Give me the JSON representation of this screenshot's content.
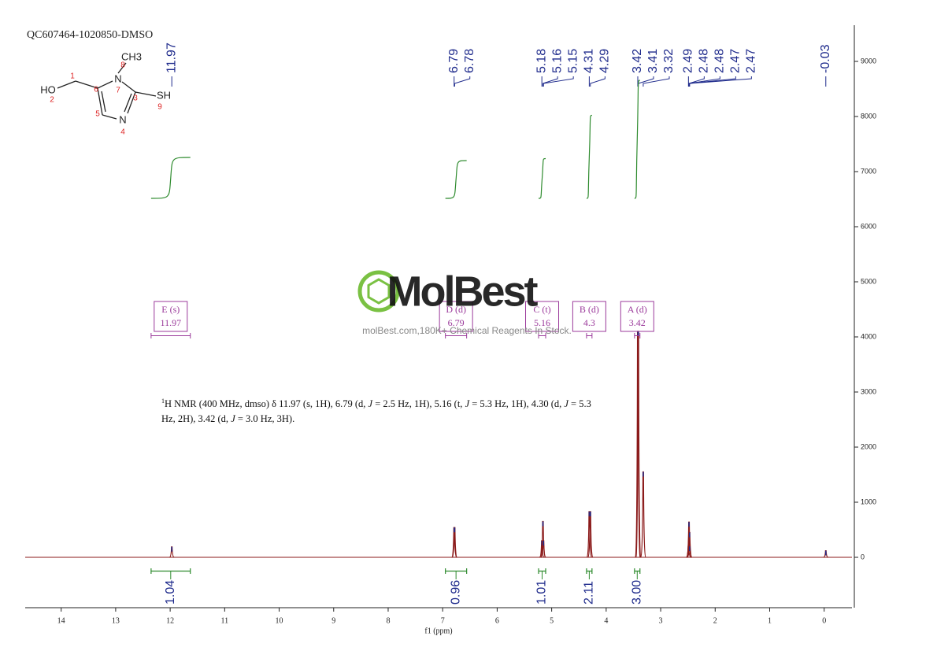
{
  "chart_data": {
    "type": "nmr",
    "title": "QC607464-1020850-DMSO",
    "x_label": "f1 (ppm)",
    "xlim": [
      14.66,
      -0.51
    ],
    "xticks": [
      14,
      13,
      12,
      11,
      10,
      9,
      8,
      7,
      6,
      5,
      4,
      3,
      2,
      1,
      0
    ],
    "ylim": [
      -914,
      9657
    ],
    "yticks": [
      0,
      1000,
      2000,
      3000,
      4000,
      5000,
      6000,
      7000,
      8000,
      9000
    ],
    "color": "#8b1a1a",
    "peaks": {
      "x": [
        11.97,
        6.79,
        6.78,
        5.18,
        5.16,
        5.15,
        4.31,
        4.29,
        3.42,
        3.41,
        3.32,
        2.49,
        2.48,
        2.48,
        2.47,
        2.47,
        -0.03
      ],
      "values": [
        190,
        540,
        540,
        300,
        650,
        300,
        830,
        830,
        4100,
        4100,
        1550,
        200,
        450,
        640,
        450,
        200,
        120
      ]
    },
    "integrals": {
      "color": "#2e8b2e",
      "ranges": [
        [
          12.35,
          11.63
        ],
        [
          6.95,
          6.56
        ],
        [
          5.24,
          5.11
        ],
        [
          4.36,
          4.26
        ],
        [
          3.48,
          3.38
        ]
      ],
      "values": [
        1.04,
        0.96,
        1.01,
        2.11,
        3
      ],
      "value_labels": [
        "1.04",
        "0.96",
        "1.01",
        "2.11",
        "3.00"
      ]
    },
    "multiplets": [
      {
        "name": "E (s)",
        "shift": 11.97,
        "range": [
          12.35,
          11.63
        ]
      },
      {
        "name": "D (d)",
        "shift": 6.79,
        "range": [
          6.95,
          6.56
        ]
      },
      {
        "name": "C (t)",
        "shift": 5.16,
        "range": [
          5.24,
          5.11
        ]
      },
      {
        "name": "B (d)",
        "shift": 4.3,
        "range": [
          4.36,
          4.26
        ]
      },
      {
        "name": "A (d)",
        "shift": 3.42,
        "range": [
          3.48,
          3.38
        ]
      }
    ],
    "description": {
      "superscript": "1",
      "parts": [
        "H NMR (400 MHz, dmso) δ 11.97 (s, 1H), 6.79 (d, ",
        "J",
        " = 2.5 Hz, 1H), 5.16 (t, ",
        "J",
        " = 5.3 Hz, 1H), 4.30 (d, ",
        "J",
        " = 5.3 Hz, 2H), 3.42 (d, ",
        "J",
        " = 3.0 Hz, 3H)."
      ]
    },
    "molecule": {
      "atoms": [
        "HO",
        "1",
        "2",
        "6",
        "N",
        "7",
        "8",
        "CH3",
        "3",
        "SH",
        "9",
        "5",
        "N",
        "4"
      ]
    },
    "watermark": {
      "brand": "MolBest",
      "tagline": "molBest.com,180K+ Chemical Reagents In Stock."
    }
  }
}
